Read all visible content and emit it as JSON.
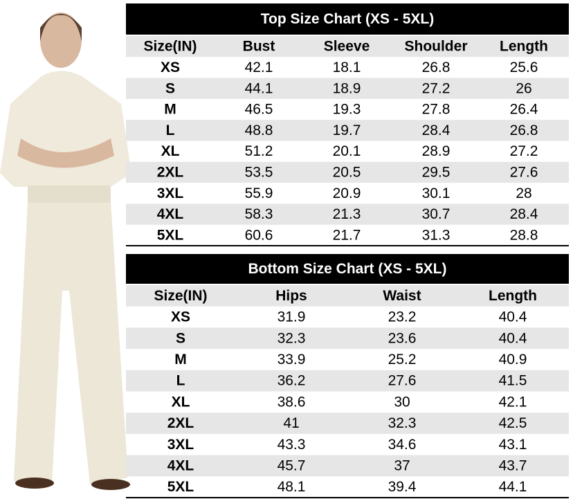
{
  "top_table": {
    "title": "Top Size Chart (XS - 5XL)",
    "columns": [
      "Size(IN)",
      "Bust",
      "Sleeve",
      "Shoulder",
      "Length"
    ],
    "rows": [
      [
        "XS",
        42.1,
        18.1,
        26.8,
        25.6
      ],
      [
        "S",
        44.1,
        18.9,
        27.2,
        26
      ],
      [
        "M",
        46.5,
        19.3,
        27.8,
        26.4
      ],
      [
        "L",
        48.8,
        19.7,
        28.4,
        26.8
      ],
      [
        "XL",
        51.2,
        20.1,
        28.9,
        27.2
      ],
      [
        "2XL",
        53.5,
        20.5,
        29.5,
        27.6
      ],
      [
        "3XL",
        55.9,
        20.9,
        30.1,
        28
      ],
      [
        "4XL",
        58.3,
        21.3,
        30.7,
        28.4
      ],
      [
        "5XL",
        60.6,
        21.7,
        31.3,
        28.8
      ]
    ]
  },
  "bottom_table": {
    "title": "Bottom Size Chart (XS - 5XL)",
    "columns": [
      "Size(IN)",
      "Hips",
      "Waist",
      "Length"
    ],
    "rows": [
      [
        "XS",
        31.9,
        23.2,
        40.4
      ],
      [
        "S",
        32.3,
        23.6,
        40.4
      ],
      [
        "M",
        33.9,
        25.2,
        40.9
      ],
      [
        "L",
        36.2,
        27.6,
        41.5
      ],
      [
        "XL",
        38.6,
        30,
        42.1
      ],
      [
        "2XL",
        41,
        32.3,
        42.5
      ],
      [
        "3XL",
        43.3,
        34.6,
        43.1
      ],
      [
        "4XL",
        45.7,
        37,
        43.7
      ],
      [
        "5XL",
        48.1,
        39.4,
        44.1
      ]
    ]
  }
}
